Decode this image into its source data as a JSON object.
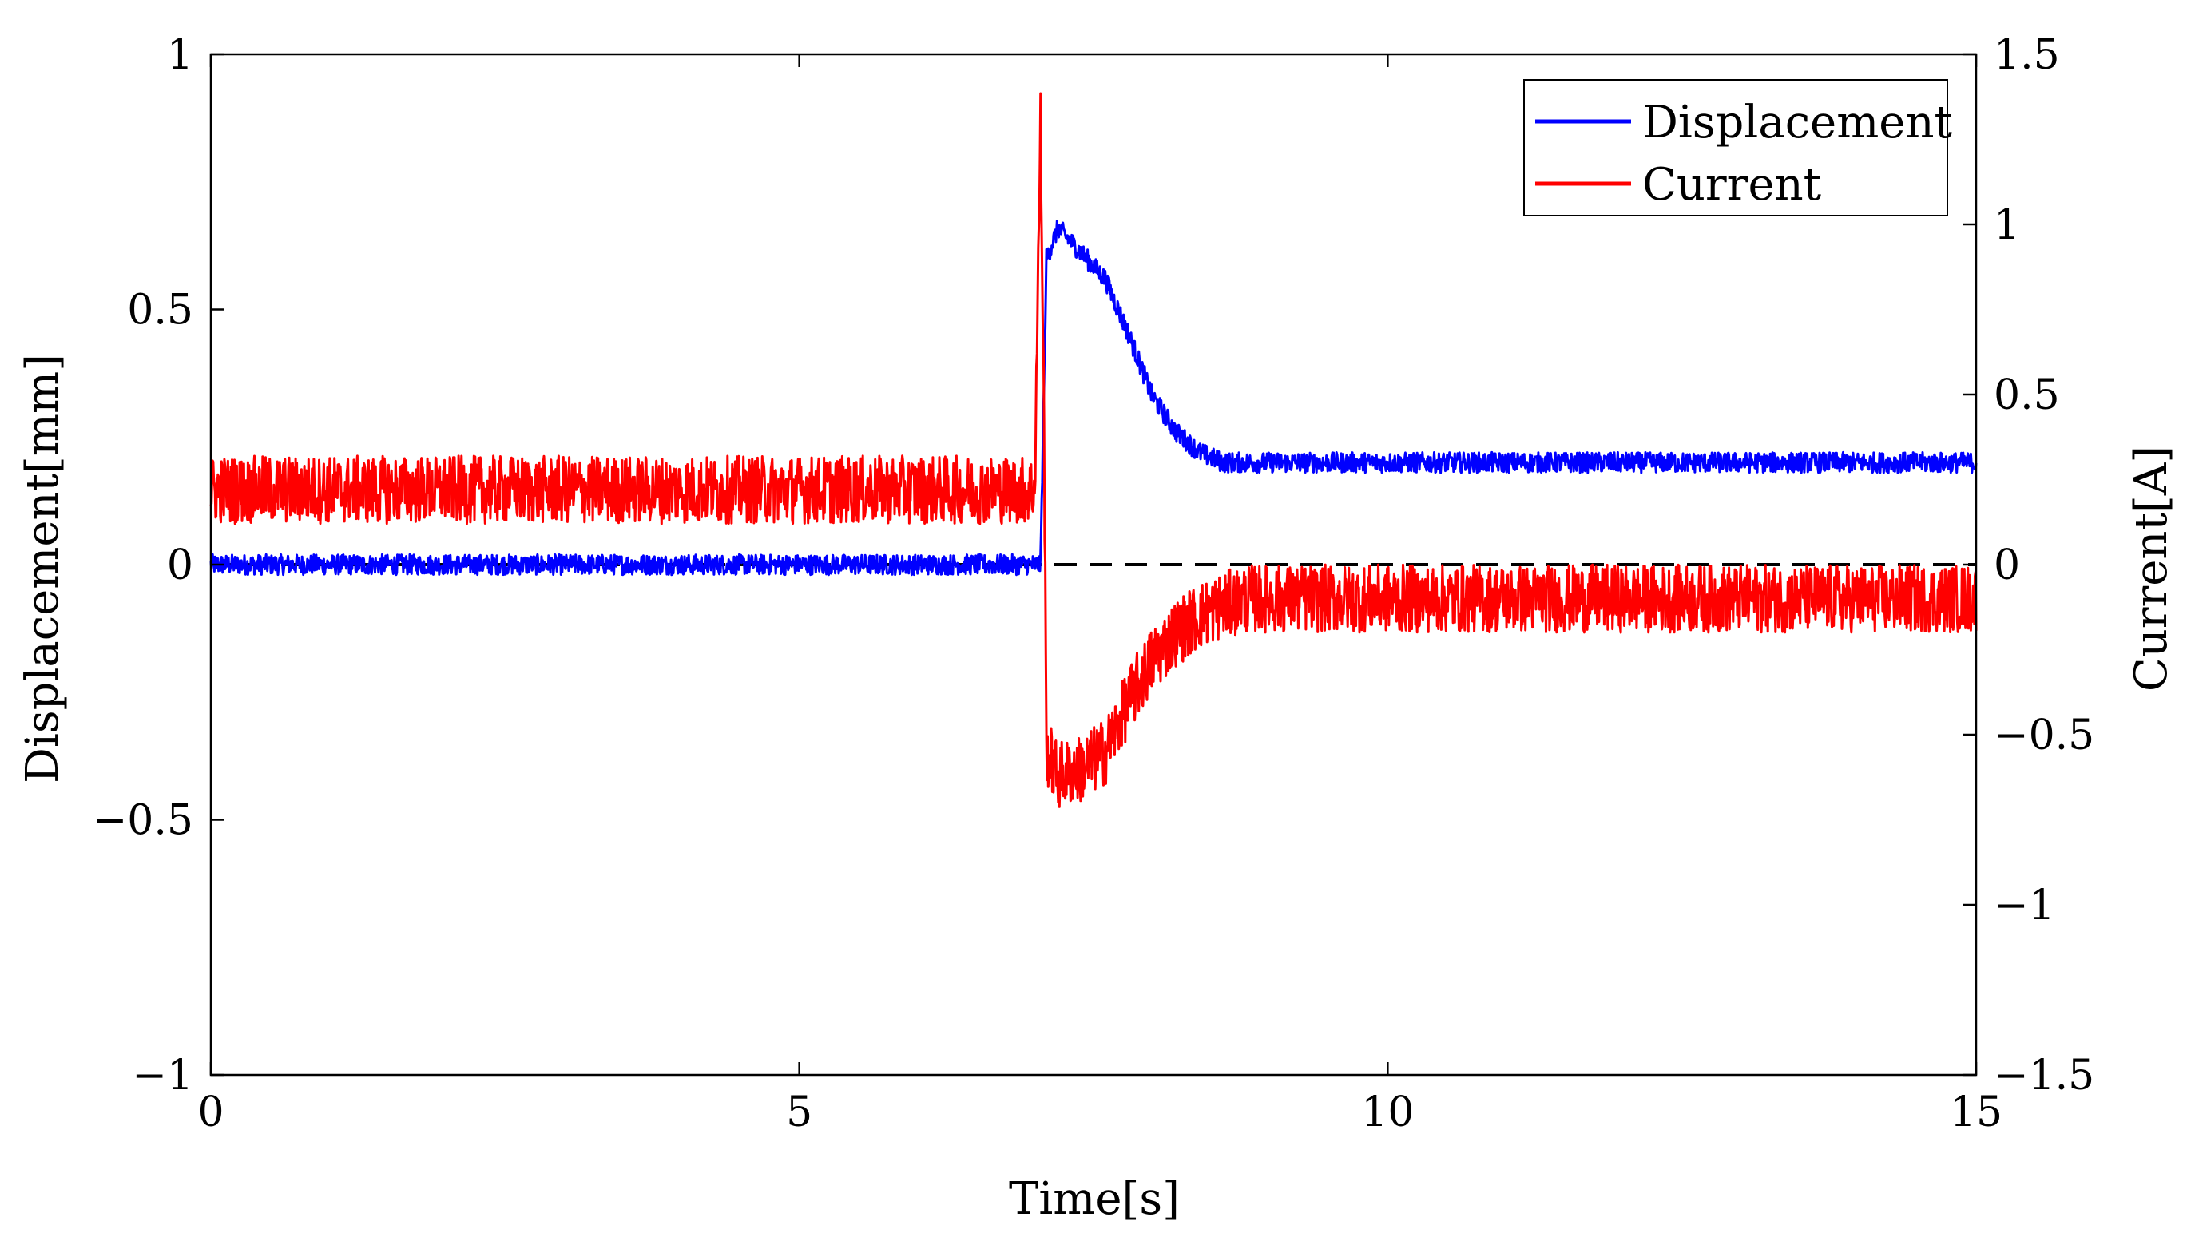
{
  "chart_data": {
    "type": "line",
    "title": "",
    "xlabel": "Time[s]",
    "ylabel_left": "Displacement[mm]",
    "ylabel_right": "Current[A]",
    "xlim": [
      0,
      15
    ],
    "ylim_left": [
      -1,
      1
    ],
    "ylim_right": [
      -1.5,
      1.5
    ],
    "x_ticks": [
      "0",
      "5",
      "10",
      "15"
    ],
    "y_ticks_left": [
      "1",
      "0.5",
      "0",
      "−0.5",
      "−1"
    ],
    "y_ticks_right": [
      "1.5",
      "1",
      "0.5",
      "0",
      "−0.5",
      "−1",
      "−1.5"
    ],
    "legend_position": "top-right",
    "reference_line": {
      "axis": "left",
      "y": 0,
      "style": "dashed",
      "color": "#000000"
    },
    "series": [
      {
        "name": "Displacement",
        "axis": "left",
        "color": "#0000ff",
        "x": [
          0,
          1,
          2,
          3,
          4,
          5,
          6,
          7.0,
          7.05,
          7.1,
          7.2,
          7.4,
          7.6,
          7.8,
          8.0,
          8.2,
          8.4,
          8.6,
          8.8,
          9,
          10,
          11,
          12,
          13,
          14,
          15
        ],
        "values": [
          0.0,
          0.0,
          0.0,
          0.0,
          0.0,
          0.0,
          0.0,
          0.0,
          0.0,
          0.6,
          0.66,
          0.61,
          0.56,
          0.45,
          0.33,
          0.26,
          0.22,
          0.2,
          0.2,
          0.2,
          0.2,
          0.2,
          0.2,
          0.2,
          0.2,
          0.2
        ],
        "noise_amplitude": 0.02
      },
      {
        "name": "Current",
        "axis": "right",
        "color": "#ff0000",
        "x": [
          0,
          1,
          2,
          3,
          4,
          5,
          6,
          7.0,
          7.05,
          7.08,
          7.1,
          7.2,
          7.4,
          7.6,
          7.8,
          8.0,
          8.2,
          8.4,
          8.6,
          8.8,
          9,
          10,
          11,
          12,
          13,
          14,
          15
        ],
        "values": [
          0.22,
          0.22,
          0.22,
          0.22,
          0.22,
          0.22,
          0.22,
          0.22,
          1.3,
          0.4,
          -0.55,
          -0.62,
          -0.6,
          -0.55,
          -0.4,
          -0.28,
          -0.2,
          -0.15,
          -0.12,
          -0.1,
          -0.1,
          -0.1,
          -0.1,
          -0.1,
          -0.1,
          -0.1,
          -0.1
        ],
        "noise_amplitude": 0.1
      }
    ]
  }
}
